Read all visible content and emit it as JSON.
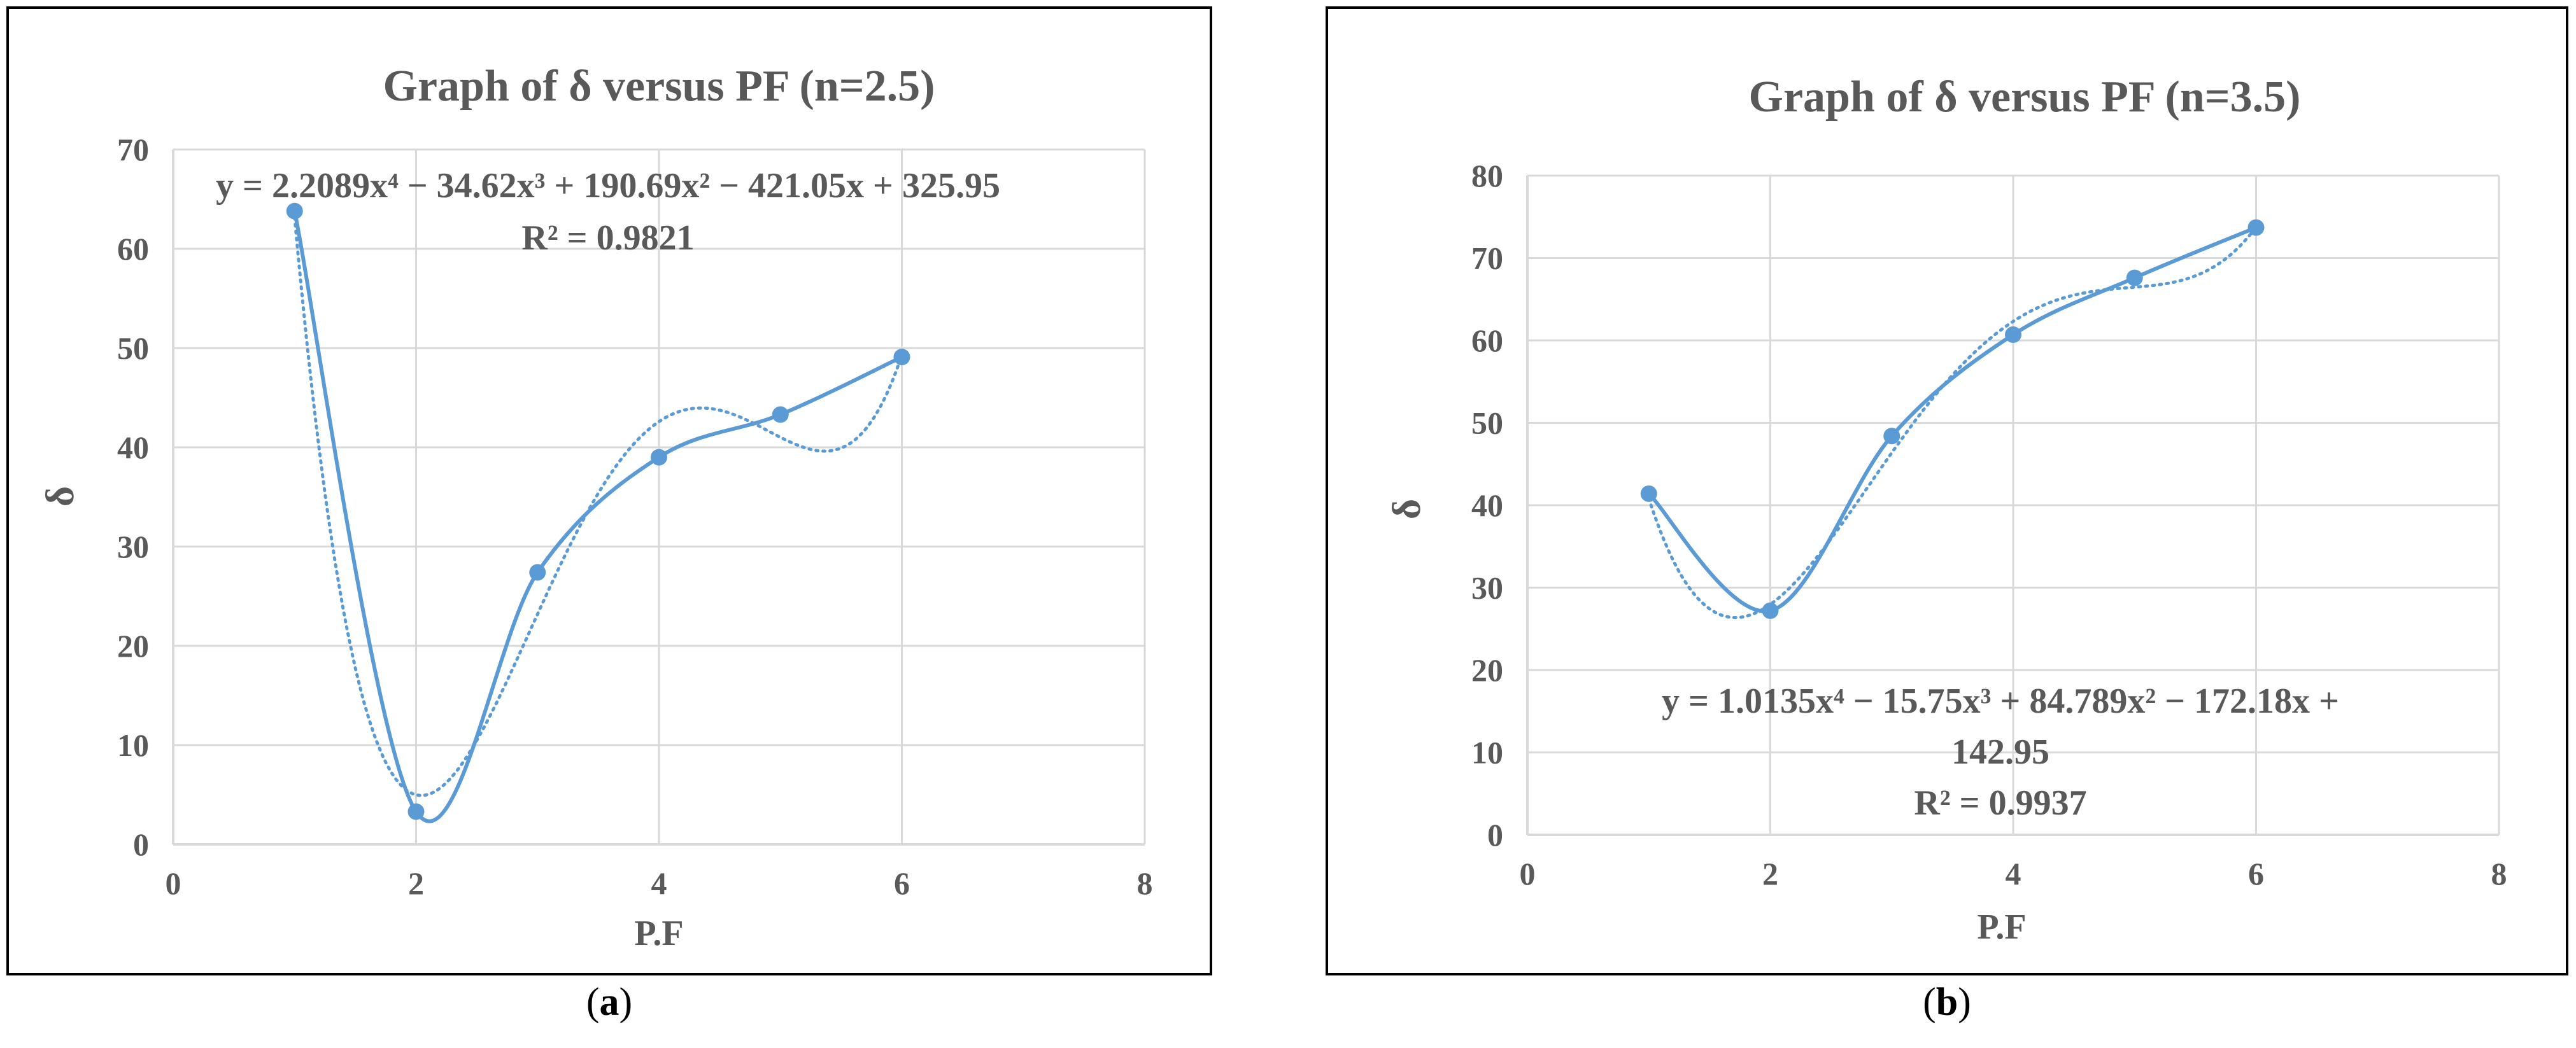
{
  "chart_data": [
    {
      "type": "scatter",
      "title": "Graph of δ versus PF (n=2.5)",
      "xlabel": "P.F",
      "ylabel": "δ",
      "xlim": [
        0,
        8
      ],
      "ylim": [
        0,
        70
      ],
      "xticks": [
        "0",
        "2",
        "4",
        "6",
        "8"
      ],
      "yticks": [
        "0",
        "10",
        "20",
        "30",
        "40",
        "50",
        "60",
        "70"
      ],
      "grid": true,
      "smoothed_line": true,
      "series": [
        {
          "x": [
            1,
            2,
            3,
            4,
            5,
            6
          ],
          "y": [
            63.8,
            3.3,
            27.4,
            39.0,
            43.3,
            49.1
          ]
        }
      ],
      "trendline": {
        "type": "polynomial",
        "order": 4,
        "style": "dotted",
        "coefficients": [
          2.2089,
          -34.62,
          190.69,
          -421.05,
          325.95
        ],
        "equation": "y = 2.2089x⁴ − 34.62x³ + 190.69x² − 421.05x + 325.95",
        "equation_lines": [
          "y = 2.2089x⁴ − 34.62x³ + 190.69x² − 421.05x + 325.95"
        ],
        "r2": "R² = 0.9821"
      },
      "caption_letter": "a"
    },
    {
      "type": "scatter",
      "title": "Graph of δ versus PF (n=3.5)",
      "xlabel": "P.F",
      "ylabel": "δ",
      "xlim": [
        0,
        8
      ],
      "ylim": [
        0,
        80
      ],
      "xticks": [
        "0",
        "2",
        "4",
        "6",
        "8"
      ],
      "yticks": [
        "0",
        "10",
        "20",
        "30",
        "40",
        "50",
        "60",
        "70",
        "80"
      ],
      "grid": true,
      "smoothed_line": true,
      "series": [
        {
          "x": [
            1,
            2,
            3,
            4,
            5,
            6
          ],
          "y": [
            41.4,
            27.2,
            48.4,
            60.7,
            67.6,
            73.7
          ]
        }
      ],
      "trendline": {
        "type": "polynomial",
        "order": 4,
        "style": "dotted",
        "coefficients": [
          1.0135,
          -15.75,
          84.789,
          -172.18,
          142.95
        ],
        "equation": "y = 1.0135x⁴ − 15.75x³ + 84.789x² − 172.18x + 142.95",
        "equation_lines": [
          "y = 1.0135x⁴ − 15.75x³ + 84.789x² − 172.18x +",
          "142.95"
        ],
        "r2": "R² = 0.9937"
      },
      "caption_letter": "b"
    }
  ],
  "colors": {
    "series": "#5b9bd5",
    "grid": "#d9d9d9",
    "text": "#595959",
    "frame": "#000000"
  }
}
